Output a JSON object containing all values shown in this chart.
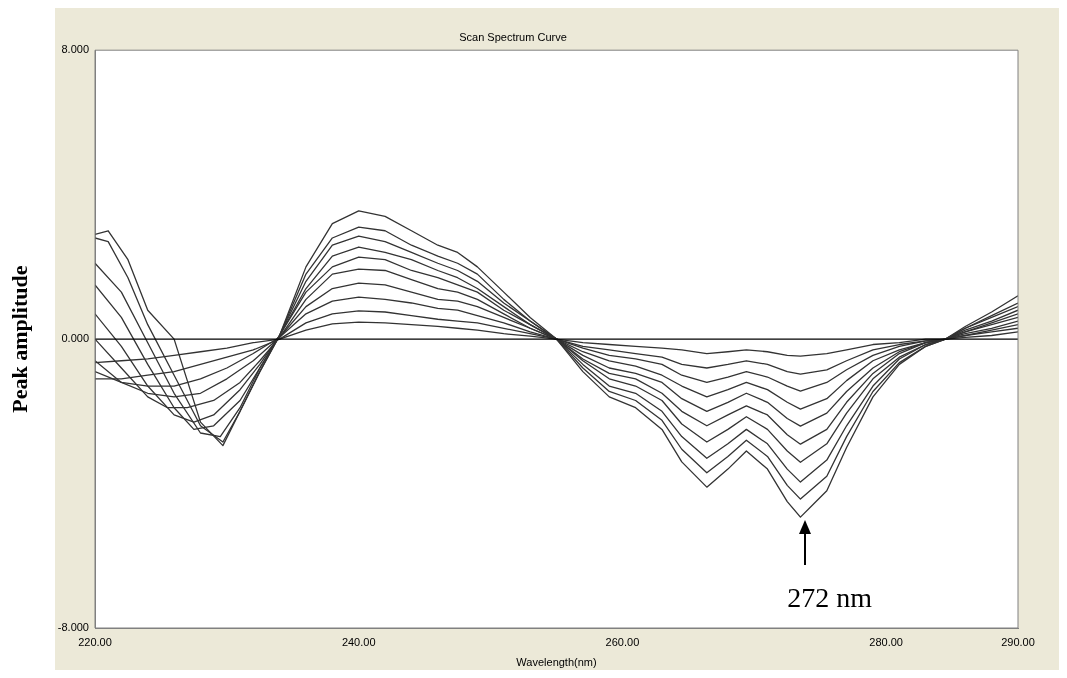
{
  "chart_data": {
    "type": "line",
    "title": "Scan Spectrum Curve",
    "xlabel": "Wavelength(nm)",
    "ylabel": "Peak amplitude",
    "xlim": [
      220,
      290
    ],
    "ylim": [
      -8,
      8
    ],
    "xticks": [
      {
        "value": 220,
        "label": "220.00"
      },
      {
        "value": 240,
        "label": "240.00"
      },
      {
        "value": 260,
        "label": "260.00"
      },
      {
        "value": 280,
        "label": "280.00"
      },
      {
        "value": 290,
        "label": "290.00"
      }
    ],
    "yticks": [
      {
        "value": -8,
        "label": "-8.000"
      },
      {
        "value": 0,
        "label": "0.000"
      },
      {
        "value": 8,
        "label": "8.000"
      }
    ],
    "grid": false,
    "legend": false,
    "marker": "none",
    "line_style": "solid",
    "ref_lines": [
      {
        "axis": "y",
        "value": 0,
        "color": "#000000"
      }
    ],
    "annotations": [
      "272 nm"
    ],
    "series": [
      {
        "color": "#333333",
        "x": [
          220,
          221,
          222.5,
          224,
          226,
          228,
          229.7,
          231,
          232.5,
          234,
          236,
          238,
          240,
          242,
          244,
          246,
          247.5,
          249,
          251,
          253,
          255,
          257,
          259,
          261,
          263,
          264.5,
          266.4,
          268,
          269.4,
          271,
          272.5,
          273.5,
          275.5,
          277,
          279,
          281,
          283,
          284.5,
          286,
          288,
          290
        ],
        "values": [
          2.9,
          3.0,
          2.2,
          0.8,
          0,
          -2.3,
          -2.95,
          -2.0,
          -0.9,
          0.1,
          2.0,
          3.2,
          3.55,
          3.4,
          3.0,
          2.6,
          2.4,
          2.0,
          1.3,
          0.6,
          0,
          -0.9,
          -1.6,
          -1.9,
          -2.5,
          -3.4,
          -4.1,
          -3.6,
          -3.1,
          -3.6,
          -4.5,
          -4.93,
          -4.2,
          -3.0,
          -1.6,
          -0.7,
          -0.2,
          0,
          0.35,
          0.75,
          1.2
        ]
      },
      {
        "color": "#333333",
        "x": [
          220,
          221,
          222.5,
          224,
          226,
          228,
          229.7,
          231,
          232.5,
          234,
          236,
          238,
          240,
          242,
          244,
          246,
          247.5,
          249,
          251,
          253,
          255,
          257,
          259,
          261,
          263,
          264.5,
          266.4,
          268,
          269.4,
          271,
          272.5,
          273.5,
          275.5,
          277,
          279,
          281,
          283,
          284.5,
          286,
          288,
          290
        ],
        "values": [
          2.8,
          2.7,
          1.7,
          0.4,
          -1.0,
          -2.4,
          -2.85,
          -2.0,
          -0.9,
          0.1,
          1.8,
          2.8,
          3.1,
          3.0,
          2.6,
          2.3,
          2.1,
          1.8,
          1.1,
          0.5,
          0,
          -0.8,
          -1.45,
          -1.7,
          -2.25,
          -3.05,
          -3.7,
          -3.25,
          -2.8,
          -3.25,
          -4.05,
          -4.43,
          -3.8,
          -2.7,
          -1.45,
          -0.65,
          -0.2,
          0,
          0.3,
          0.65,
          1.0
        ]
      },
      {
        "color": "#333333",
        "x": [
          220,
          222,
          224,
          226,
          228,
          229.5,
          231,
          232.5,
          234,
          236,
          238,
          240,
          242,
          244,
          246,
          247.5,
          249,
          251,
          253,
          255,
          257,
          259,
          261,
          263,
          264.5,
          266.4,
          268,
          269.4,
          271,
          272.5,
          273.5,
          275.5,
          277,
          279,
          281,
          283,
          284.5,
          286,
          288,
          290
        ],
        "values": [
          2.1,
          1.3,
          -0.1,
          -1.5,
          -2.6,
          -2.7,
          -1.9,
          -0.8,
          0.1,
          1.6,
          2.6,
          2.85,
          2.7,
          2.4,
          2.1,
          1.9,
          1.6,
          1.0,
          0.5,
          0,
          -0.7,
          -1.3,
          -1.5,
          -2.0,
          -2.7,
          -3.3,
          -2.9,
          -2.5,
          -2.9,
          -3.6,
          -3.96,
          -3.35,
          -2.4,
          -1.3,
          -0.55,
          -0.15,
          0,
          0.3,
          0.6,
          0.9
        ]
      },
      {
        "color": "#333333",
        "x": [
          220,
          222,
          224,
          226,
          227.5,
          229,
          231,
          232.5,
          234,
          236,
          238,
          240,
          242,
          244,
          246,
          247.5,
          249,
          251,
          253,
          255,
          257,
          259,
          261,
          263,
          264.5,
          266.4,
          268,
          269.4,
          271,
          272.5,
          273.5,
          275.5,
          277,
          279,
          281,
          283,
          284.5,
          286,
          288,
          290
        ],
        "values": [
          1.5,
          0.6,
          -0.7,
          -1.9,
          -2.5,
          -2.4,
          -1.7,
          -0.8,
          0.1,
          1.4,
          2.3,
          2.55,
          2.4,
          2.2,
          1.9,
          1.7,
          1.4,
          0.9,
          0.4,
          0,
          -0.6,
          -1.1,
          -1.3,
          -1.7,
          -2.35,
          -2.85,
          -2.5,
          -2.15,
          -2.5,
          -3.1,
          -3.41,
          -2.9,
          -2.05,
          -1.1,
          -0.5,
          -0.15,
          0,
          0.25,
          0.5,
          0.8
        ]
      },
      {
        "color": "#333333",
        "x": [
          220,
          222,
          224,
          226,
          227.5,
          229,
          231,
          232.5,
          234,
          236,
          238,
          240,
          242,
          244,
          246,
          247.5,
          249,
          251,
          253,
          255,
          257,
          259,
          261,
          263,
          264.5,
          266.4,
          268,
          269.4,
          271,
          272.5,
          273.5,
          275.5,
          277,
          279,
          281,
          283,
          284.5,
          286,
          288,
          290
        ],
        "values": [
          0.7,
          -0.2,
          -1.3,
          -2.1,
          -2.3,
          -2.1,
          -1.4,
          -0.7,
          0.1,
          1.3,
          2.0,
          2.27,
          2.2,
          1.9,
          1.7,
          1.5,
          1.3,
          0.8,
          0.4,
          0,
          -0.55,
          -0.95,
          -1.1,
          -1.5,
          -2.0,
          -2.4,
          -2.1,
          -1.85,
          -2.1,
          -2.65,
          -2.91,
          -2.5,
          -1.75,
          -0.95,
          -0.4,
          -0.1,
          0,
          0.2,
          0.45,
          0.7
        ]
      },
      {
        "color": "#333333",
        "x": [
          220,
          222,
          224,
          225.5,
          227,
          229,
          231,
          232.5,
          234,
          236,
          238,
          240,
          242,
          244,
          246,
          247.5,
          249,
          251,
          253,
          255,
          257,
          259,
          261,
          263,
          264.5,
          266.4,
          268,
          269.4,
          271,
          272.5,
          273.5,
          275.5,
          277,
          279,
          281,
          283,
          284.5,
          286,
          288,
          290
        ],
        "values": [
          0.0,
          -0.8,
          -1.6,
          -1.9,
          -1.9,
          -1.7,
          -1.2,
          -0.6,
          0.05,
          1.1,
          1.8,
          1.94,
          1.9,
          1.65,
          1.4,
          1.3,
          1.1,
          0.7,
          0.3,
          0,
          -0.45,
          -0.8,
          -0.95,
          -1.2,
          -1.65,
          -2.0,
          -1.75,
          -1.5,
          -1.75,
          -2.2,
          -2.41,
          -2.05,
          -1.45,
          -0.8,
          -0.35,
          -0.1,
          0,
          0.2,
          0.4,
          0.6
        ]
      },
      {
        "color": "#333333",
        "x": [
          220,
          222,
          224,
          226,
          228,
          230,
          232,
          234,
          236,
          238,
          240,
          242,
          244,
          246,
          247.5,
          249,
          251,
          253,
          255,
          257,
          259,
          261,
          263,
          264.5,
          266.4,
          268,
          269.4,
          271,
          272.5,
          273.5,
          275.5,
          277,
          279,
          281,
          283,
          284.5,
          286,
          288,
          290
        ],
        "values": [
          -0.6,
          -1.2,
          -1.5,
          -1.6,
          -1.5,
          -1.1,
          -0.6,
          0.05,
          0.9,
          1.4,
          1.55,
          1.5,
          1.3,
          1.1,
          1.05,
          0.9,
          0.6,
          0.3,
          0,
          -0.35,
          -0.6,
          -0.75,
          -1.0,
          -1.3,
          -1.6,
          -1.4,
          -1.2,
          -1.4,
          -1.75,
          -1.94,
          -1.65,
          -1.15,
          -0.6,
          -0.3,
          -0.1,
          0,
          0.15,
          0.3,
          0.5
        ]
      },
      {
        "color": "#333333",
        "x": [
          220,
          222,
          224,
          226,
          228,
          230,
          232,
          234,
          236,
          238,
          240,
          242,
          244,
          246,
          247.5,
          249,
          251,
          253,
          255,
          257,
          259,
          261,
          263,
          264.5,
          266.4,
          268,
          269.4,
          271,
          272.5,
          273.5,
          275.5,
          277,
          279,
          281,
          283,
          284.5,
          286,
          288,
          290
        ],
        "values": [
          -0.9,
          -1.2,
          -1.3,
          -1.3,
          -1.1,
          -0.8,
          -0.4,
          0.05,
          0.7,
          1.05,
          1.16,
          1.1,
          1.0,
          0.85,
          0.8,
          0.65,
          0.45,
          0.2,
          0,
          -0.25,
          -0.45,
          -0.55,
          -0.7,
          -1.0,
          -1.2,
          -1.05,
          -0.9,
          -1.05,
          -1.3,
          -1.44,
          -1.2,
          -0.85,
          -0.45,
          -0.2,
          -0.05,
          0,
          0.1,
          0.25,
          0.4
        ]
      },
      {
        "color": "#333333",
        "x": [
          220,
          222,
          224,
          226,
          228,
          230,
          232,
          234,
          236,
          238,
          240,
          242,
          244,
          246,
          247.5,
          249,
          251,
          253,
          255,
          257,
          259,
          261,
          263,
          264.5,
          266.4,
          268,
          269.4,
          271,
          272.5,
          273.5,
          275.5,
          277,
          279,
          281,
          283,
          284.5,
          286,
          288,
          290
        ],
        "values": [
          -1.1,
          -1.1,
          -1.0,
          -0.9,
          -0.7,
          -0.5,
          -0.3,
          0,
          0.45,
          0.7,
          0.78,
          0.75,
          0.65,
          0.55,
          0.5,
          0.45,
          0.3,
          0.15,
          0,
          -0.2,
          -0.3,
          -0.4,
          -0.5,
          -0.7,
          -0.8,
          -0.7,
          -0.6,
          -0.7,
          -0.9,
          -0.97,
          -0.85,
          -0.6,
          -0.3,
          -0.15,
          -0.05,
          0,
          0.1,
          0.2,
          0.3
        ]
      },
      {
        "color": "#333333",
        "x": [
          220,
          222,
          224,
          226,
          228,
          230,
          232,
          234,
          236,
          238,
          240,
          242,
          244,
          246,
          247.5,
          249,
          251,
          253,
          255,
          257,
          259,
          261,
          263,
          264.5,
          266.4,
          268,
          269.4,
          271,
          272.5,
          273.5,
          275.5,
          277,
          279,
          281,
          283,
          284.5,
          286,
          288,
          290
        ],
        "values": [
          -0.65,
          -0.6,
          -0.55,
          -0.45,
          -0.35,
          -0.25,
          -0.1,
          0,
          0.25,
          0.42,
          0.47,
          0.45,
          0.4,
          0.35,
          0.3,
          0.25,
          0.15,
          0.08,
          0,
          -0.1,
          -0.15,
          -0.2,
          -0.25,
          -0.3,
          -0.4,
          -0.35,
          -0.3,
          -0.35,
          -0.45,
          -0.47,
          -0.4,
          -0.3,
          -0.15,
          -0.1,
          0,
          0,
          0.05,
          0.1,
          0.2
        ]
      }
    ]
  }
}
